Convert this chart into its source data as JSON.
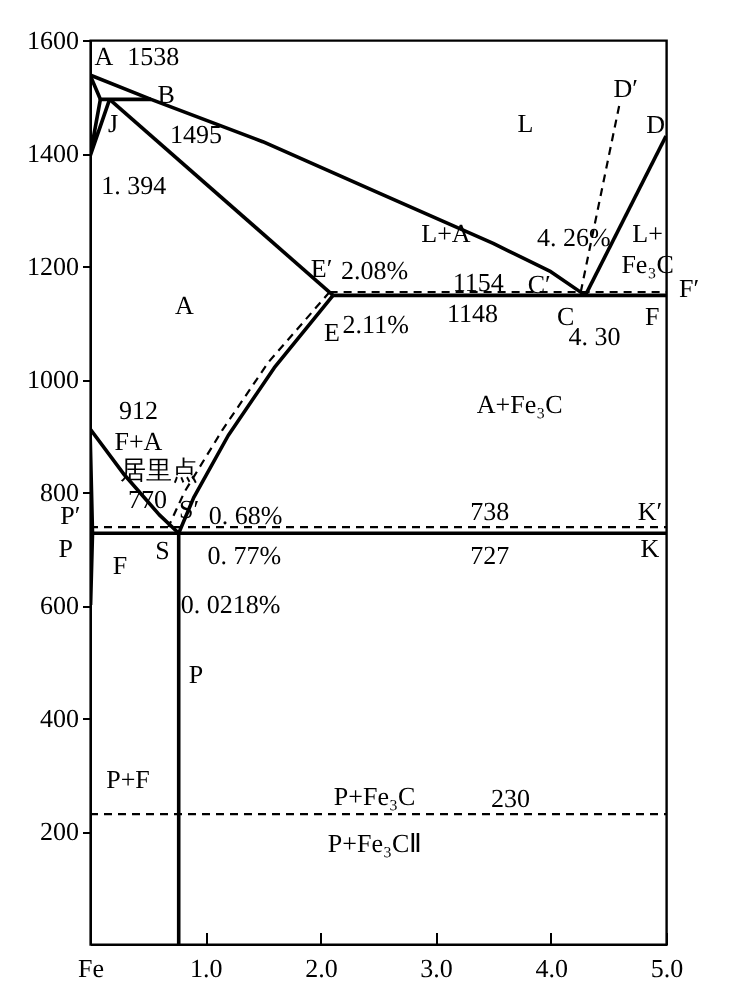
{
  "chart_data": {
    "type": "line",
    "xlim": [
      0,
      5
    ],
    "ylim": [
      0,
      1600
    ],
    "xticks": [
      {
        "value": 0,
        "label": "Fe"
      },
      {
        "value": 1,
        "label": "1.0"
      },
      {
        "value": 2,
        "label": "2.0"
      },
      {
        "value": 3,
        "label": "3.0"
      },
      {
        "value": 4,
        "label": "4.0"
      },
      {
        "value": 5,
        "label": "5.0"
      }
    ],
    "yticks": [
      200,
      400,
      600,
      800,
      1000,
      1200,
      1400,
      1600
    ],
    "grid": false,
    "series": [
      {
        "color": "#000000",
        "line_style": "solid",
        "x": [
          0,
          0.53,
          1.5,
          2.5,
          3.5,
          4.0,
          4.3
        ],
        "values": [
          1538,
          1495,
          1420,
          1330,
          1240,
          1190,
          1148
        ]
      },
      {
        "color": "#000000",
        "line_style": "solid",
        "x": [
          4.3,
          5.0
        ],
        "values": [
          1148,
          1430
        ]
      },
      {
        "color": "#000000",
        "line_style": "solid",
        "x": [
          0,
          0.09,
          0.53
        ],
        "values": [
          1538,
          1495,
          1495
        ]
      },
      {
        "color": "#000000",
        "line_style": "solid",
        "x": [
          0.09,
          0,
          0.17
        ],
        "values": [
          1495,
          1394,
          1495
        ]
      },
      {
        "color": "#000000",
        "line_style": "solid",
        "x": [
          0.17,
          2.11
        ],
        "values": [
          1495,
          1148
        ]
      },
      {
        "color": "#000000",
        "line_style": "solid",
        "x": [
          2.11,
          5.0
        ],
        "values": [
          1148,
          1148
        ]
      },
      {
        "color": "#000000",
        "line_style": "solid",
        "x": [
          2.11,
          1.6,
          1.2,
          0.9,
          0.77,
          0.77
        ],
        "values": [
          1148,
          1020,
          900,
          790,
          727,
          0
        ]
      },
      {
        "color": "#000000",
        "line_style": "solid",
        "x": [
          0,
          0.3,
          0.6,
          0.77
        ],
        "values": [
          912,
          830,
          760,
          727
        ]
      },
      {
        "color": "#000000",
        "line_style": "solid",
        "x": [
          0,
          0.0218,
          0.005
        ],
        "values": [
          912,
          727,
          600
        ]
      },
      {
        "color": "#000000",
        "line_style": "solid",
        "x": [
          0.0218,
          5.0
        ],
        "values": [
          727,
          727
        ]
      },
      {
        "color": "#000000",
        "line_style": "dashed",
        "x": [
          2.08,
          5.0
        ],
        "values": [
          1154,
          1154
        ]
      },
      {
        "color": "#000000",
        "line_style": "dashed",
        "x": [
          2.08,
          1.55,
          1.15,
          0.82,
          0.68
        ],
        "values": [
          1154,
          1030,
          910,
          800,
          738
        ]
      },
      {
        "color": "#000000",
        "line_style": "dashed",
        "x": [
          4.26,
          4.6
        ],
        "values": [
          1154,
          1490
        ]
      },
      {
        "color": "#000000",
        "line_style": "dashed",
        "x": [
          0,
          5.0
        ],
        "values": [
          738,
          738
        ]
      },
      {
        "color": "#000000",
        "line_style": "dashed",
        "x": [
          0,
          5.0
        ],
        "values": [
          230,
          230
        ]
      }
    ],
    "annotations": [
      "A",
      "1538",
      "B",
      "1495",
      "J",
      "1. 394",
      "L",
      "D′",
      "D",
      "4. 26%",
      "L+",
      "Fe₃C",
      "L+A",
      "E′",
      "2.08%",
      "1154",
      "C′",
      "F′",
      "A",
      "E",
      "2.11%",
      "1148",
      "C",
      "4. 30",
      "F",
      "A+Fe₃C",
      "912",
      "F+A",
      "居里点",
      "770",
      "P′",
      "S′",
      "0. 68%",
      "738",
      "K′",
      "P",
      "F",
      "S",
      "0. 77%",
      "727",
      "K",
      "0. 0218%",
      "P",
      "P+F",
      "P+Fe₃C",
      "230",
      "P+Fe₃CⅡ"
    ]
  }
}
